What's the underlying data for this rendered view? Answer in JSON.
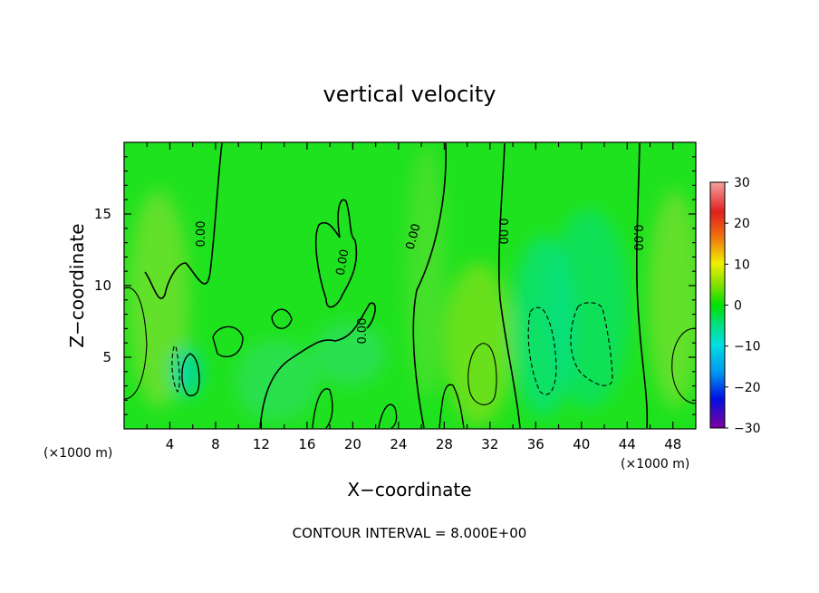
{
  "chart_data": {
    "type": "heatmap",
    "title": "vertical velocity",
    "xlabel": "X−coordinate",
    "ylabel": "Z−coordinate",
    "x_unit_left": "(×1000 m)",
    "x_unit_right": "(×1000 m)",
    "xlim": [
      0,
      50
    ],
    "ylim": [
      0,
      20
    ],
    "x_ticks": [
      4,
      8,
      12,
      16,
      20,
      24,
      28,
      32,
      36,
      40,
      44,
      48
    ],
    "y_ticks": [
      5,
      10,
      15
    ],
    "colorbar": {
      "range": [
        -30,
        30
      ],
      "ticks": [
        30,
        20,
        10,
        0,
        -10,
        -20,
        -30
      ],
      "tick_labels": [
        "30",
        "20",
        "10",
        "0",
        "−10",
        "−20",
        "−30"
      ]
    },
    "contour_label": "0.00",
    "contour_interval_text": "CONTOUR INTERVAL = 8.000E+00",
    "features": [
      {
        "kind": "updraft",
        "x": 0.5,
        "z": 5.0,
        "value": 10
      },
      {
        "kind": "updraft",
        "x": 31.0,
        "z": 3.5,
        "value": 12
      },
      {
        "kind": "updraft",
        "x": 49.5,
        "z": 4.5,
        "value": 10
      },
      {
        "kind": "downdraft",
        "x": 36.5,
        "z": 5.0,
        "value": -12
      },
      {
        "kind": "downdraft",
        "x": 40.5,
        "z": 5.5,
        "value": -9
      },
      {
        "kind": "downdraft",
        "x": 4.5,
        "z": 4.0,
        "value": -5
      }
    ]
  }
}
